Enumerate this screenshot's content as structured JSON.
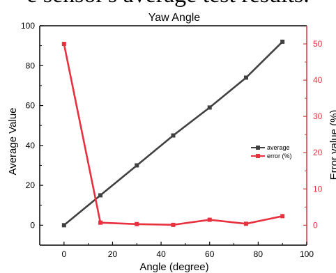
{
  "caption_text": "e sensor's average test results.",
  "chart_data": {
    "type": "line",
    "title": "Yaw Angle",
    "xlabel": "Angle (degree)",
    "ylabel": "Average Value",
    "ylabel_right": "Error value (%)",
    "xlim": [
      -10,
      100
    ],
    "ylim": [
      -10,
      100
    ],
    "ylim_right": [
      -5.5,
      55
    ],
    "x_ticks": [
      0,
      20,
      40,
      60,
      80,
      100
    ],
    "y_ticks": [
      0,
      20,
      40,
      60,
      80,
      100
    ],
    "y_ticks_right": [
      0,
      10,
      20,
      30,
      40,
      50
    ],
    "grid": false,
    "legend_position": "right",
    "series": [
      {
        "name": "average",
        "axis": "left",
        "color": "#404040",
        "x": [
          0,
          15,
          30,
          45,
          60,
          75,
          90
        ],
        "values": [
          0,
          15,
          30,
          45,
          59,
          74,
          92
        ]
      },
      {
        "name": "error (%)",
        "axis": "right",
        "color": "#e8313f",
        "x": [
          0,
          15,
          30,
          45,
          60,
          75,
          90
        ],
        "values": [
          50,
          0.7,
          0.3,
          0.1,
          1.5,
          0.4,
          2.5
        ]
      }
    ]
  }
}
